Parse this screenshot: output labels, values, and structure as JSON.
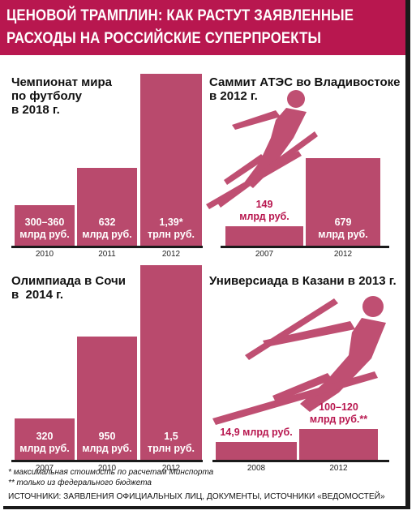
{
  "header": {
    "line1": "ЦЕНОВОЙ ТРАМПЛИН: КАК РАСТУТ ЗАЯВЛЕННЫЕ",
    "line2": "РАСХОДЫ НА РОССИЙСКИЕ СУПЕРПРОЕКТЫ"
  },
  "colors": {
    "header": "#b8174f",
    "bar": "#b94a6d",
    "accent_text": "#b8174f",
    "silhouette": "#bf4f72"
  },
  "chart_data": [
    {
      "type": "bar",
      "title": "Чемпионат мира\nпо футболу\nв 2018 г.",
      "categories": [
        "2010",
        "2011",
        "2012"
      ],
      "values": [
        330,
        632,
        1390
      ],
      "unit": "млрд руб.",
      "ylim": [
        0,
        1390
      ],
      "labels": [
        "300–360\nмлрд руб.",
        "632\nмлрд руб.",
        "1,39*\nтрлн руб."
      ],
      "label_inside": [
        true,
        true,
        true
      ]
    },
    {
      "type": "bar",
      "title": "Саммит АТЭС во Владивостоке\nв 2012 г.",
      "categories": [
        "2007",
        "2012"
      ],
      "values": [
        149,
        679
      ],
      "unit": "млрд руб.",
      "ylim": [
        0,
        679
      ],
      "labels": [
        "149\nмлрд руб.",
        "679\nмлрд руб."
      ],
      "label_inside": [
        false,
        true
      ]
    },
    {
      "type": "bar",
      "title": "Олимпиада в Сочи\nв  2014 г.",
      "categories": [
        "2007",
        "2010",
        "2012"
      ],
      "values": [
        320,
        950,
        1500
      ],
      "unit": "млрд руб.",
      "ylim": [
        0,
        1500
      ],
      "labels": [
        "320\nмлрд руб.",
        "950\nмлрд руб.",
        "1,5\nтрлн руб."
      ],
      "label_inside": [
        true,
        true,
        true
      ]
    },
    {
      "type": "bar",
      "title": "Универсиада в Казани в 2013 г.",
      "categories": [
        "2008",
        "2012"
      ],
      "values": [
        14.9,
        110
      ],
      "unit": "млрд руб.",
      "ylim": [
        0,
        110
      ],
      "labels": [
        "14,9 млрд руб.",
        "100–120\nмлрд руб.**"
      ],
      "label_inside": [
        false,
        false
      ]
    }
  ],
  "notes": {
    "n1": "* максимальная стоимость по расчетам Минспорта",
    "n2": "** только из федерального бюджета"
  },
  "sources": "ИСТОЧНИКИ: ЗАЯВЛЕНИЯ ОФИЦИАЛЬНЫХ ЛИЦ, ДОКУМЕНТЫ, ИСТОЧНИКИ «ВЕДОМОСТЕЙ»"
}
